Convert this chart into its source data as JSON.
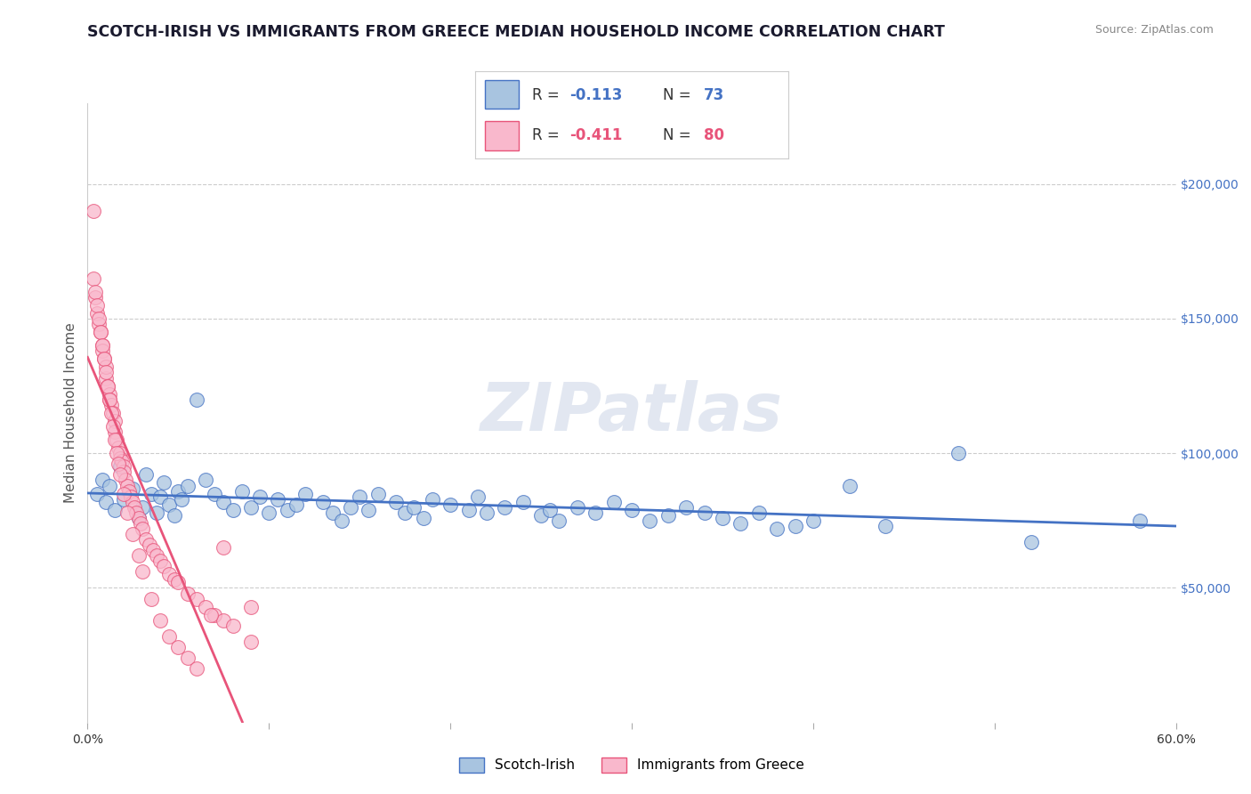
{
  "title": "SCOTCH-IRISH VS IMMIGRANTS FROM GREECE MEDIAN HOUSEHOLD INCOME CORRELATION CHART",
  "source": "Source: ZipAtlas.com",
  "ylabel": "Median Household Income",
  "xlim": [
    0.0,
    0.6
  ],
  "ylim": [
    0,
    230000
  ],
  "xticklabels": [
    "0.0%",
    "",
    "",
    "",
    "",
    "",
    "60.0%"
  ],
  "xtick_positions": [
    0.0,
    0.1,
    0.2,
    0.3,
    0.4,
    0.5,
    0.6
  ],
  "yticks_right": [
    50000,
    100000,
    150000,
    200000
  ],
  "ytick_labels_right": [
    "$50,000",
    "$100,000",
    "$150,000",
    "$200,000"
  ],
  "legend_labels": [
    "Scotch-Irish",
    "Immigrants from Greece"
  ],
  "scatter_color_1": "#a8c4e0",
  "scatter_color_2": "#f9b8cc",
  "line_color_1": "#4472c4",
  "line_color_2": "#e8547a",
  "background_color": "#ffffff",
  "watermark": "ZIPatlas",
  "title_fontsize": 12.5,
  "axis_label_fontsize": 11,
  "tick_fontsize": 10,
  "scotch_irish_x": [
    0.005,
    0.008,
    0.01,
    0.012,
    0.015,
    0.018,
    0.02,
    0.025,
    0.028,
    0.03,
    0.032,
    0.035,
    0.038,
    0.04,
    0.042,
    0.045,
    0.048,
    0.05,
    0.052,
    0.055,
    0.06,
    0.065,
    0.07,
    0.075,
    0.08,
    0.085,
    0.09,
    0.095,
    0.1,
    0.105,
    0.11,
    0.115,
    0.12,
    0.13,
    0.135,
    0.14,
    0.145,
    0.15,
    0.155,
    0.16,
    0.17,
    0.175,
    0.18,
    0.185,
    0.19,
    0.2,
    0.21,
    0.215,
    0.22,
    0.23,
    0.24,
    0.25,
    0.255,
    0.26,
    0.27,
    0.28,
    0.29,
    0.3,
    0.31,
    0.32,
    0.33,
    0.34,
    0.35,
    0.36,
    0.37,
    0.38,
    0.39,
    0.4,
    0.42,
    0.44,
    0.48,
    0.52,
    0.58
  ],
  "scotch_irish_y": [
    85000,
    90000,
    82000,
    88000,
    79000,
    95000,
    83000,
    87000,
    76000,
    80000,
    92000,
    85000,
    78000,
    84000,
    89000,
    81000,
    77000,
    86000,
    83000,
    88000,
    120000,
    90000,
    85000,
    82000,
    79000,
    86000,
    80000,
    84000,
    78000,
    83000,
    79000,
    81000,
    85000,
    82000,
    78000,
    75000,
    80000,
    84000,
    79000,
    85000,
    82000,
    78000,
    80000,
    76000,
    83000,
    81000,
    79000,
    84000,
    78000,
    80000,
    82000,
    77000,
    79000,
    75000,
    80000,
    78000,
    82000,
    79000,
    75000,
    77000,
    80000,
    78000,
    76000,
    74000,
    78000,
    72000,
    73000,
    75000,
    88000,
    73000,
    100000,
    67000,
    75000
  ],
  "greece_x": [
    0.003,
    0.004,
    0.005,
    0.006,
    0.007,
    0.008,
    0.008,
    0.009,
    0.01,
    0.01,
    0.011,
    0.012,
    0.012,
    0.013,
    0.014,
    0.015,
    0.015,
    0.016,
    0.017,
    0.018,
    0.018,
    0.019,
    0.02,
    0.02,
    0.021,
    0.022,
    0.023,
    0.024,
    0.025,
    0.026,
    0.027,
    0.028,
    0.029,
    0.03,
    0.032,
    0.034,
    0.036,
    0.038,
    0.04,
    0.042,
    0.045,
    0.048,
    0.05,
    0.055,
    0.06,
    0.065,
    0.07,
    0.075,
    0.08,
    0.09,
    0.003,
    0.004,
    0.005,
    0.006,
    0.007,
    0.008,
    0.009,
    0.01,
    0.011,
    0.012,
    0.013,
    0.014,
    0.015,
    0.016,
    0.017,
    0.018,
    0.02,
    0.022,
    0.025,
    0.028,
    0.03,
    0.035,
    0.04,
    0.045,
    0.05,
    0.055,
    0.06,
    0.068,
    0.075,
    0.09
  ],
  "greece_y": [
    190000,
    158000,
    152000,
    148000,
    145000,
    140000,
    138000,
    135000,
    128000,
    132000,
    125000,
    122000,
    120000,
    118000,
    115000,
    112000,
    108000,
    105000,
    102000,
    100000,
    98000,
    97000,
    95000,
    93000,
    90000,
    88000,
    86000,
    84000,
    82000,
    80000,
    78000,
    76000,
    74000,
    72000,
    68000,
    66000,
    64000,
    62000,
    60000,
    58000,
    55000,
    53000,
    52000,
    48000,
    46000,
    43000,
    40000,
    38000,
    36000,
    30000,
    165000,
    160000,
    155000,
    150000,
    145000,
    140000,
    135000,
    130000,
    125000,
    120000,
    115000,
    110000,
    105000,
    100000,
    96000,
    92000,
    85000,
    78000,
    70000,
    62000,
    56000,
    46000,
    38000,
    32000,
    28000,
    24000,
    20000,
    40000,
    65000,
    43000
  ]
}
